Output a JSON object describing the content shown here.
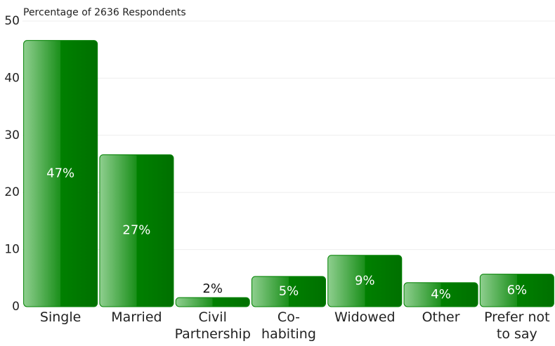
{
  "chart_data": {
    "type": "bar",
    "y_label": "Percentage of 2636 Respondents",
    "categories": [
      "Single",
      "Married",
      "Civil Partnership",
      "Co-habiting",
      "Widowed",
      "Other",
      "Prefer not to say"
    ],
    "values": [
      46.6,
      26.6,
      1.6,
      5.3,
      9.0,
      4.2,
      5.7
    ],
    "value_labels": [
      "47%",
      "27%",
      "2%",
      "5%",
      "9%",
      "4%",
      "6%"
    ],
    "color": "#008000",
    "ylim": [
      0,
      50
    ],
    "yticks": [
      0,
      10,
      20,
      30,
      40,
      50
    ],
    "grid": true
  }
}
